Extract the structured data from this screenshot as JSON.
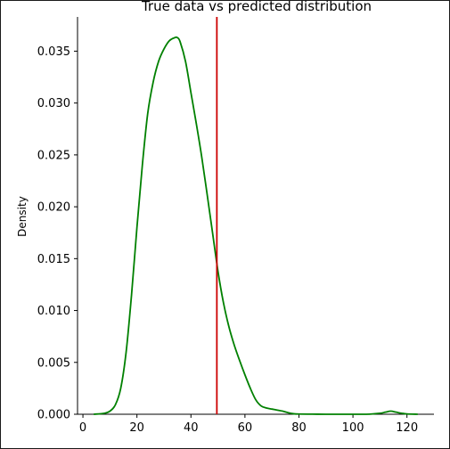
{
  "chart_data": {
    "type": "line",
    "title": "True data vs predicted distribution",
    "xlabel": "",
    "ylabel": "Density",
    "xlim": [
      -2,
      130
    ],
    "ylim": [
      0,
      0.0383
    ],
    "x_ticks": [
      0,
      20,
      40,
      60,
      80,
      100,
      120
    ],
    "y_ticks": [
      "0.000",
      "0.005",
      "0.010",
      "0.015",
      "0.020",
      "0.025",
      "0.030",
      "0.035"
    ],
    "grid": false,
    "legend": "none",
    "series": [
      {
        "color": "#008000",
        "x": [
          4,
          8,
          10,
          12,
          14,
          16,
          18,
          20,
          22,
          24,
          26,
          28,
          30,
          32,
          34,
          35,
          36,
          38,
          40,
          42,
          44,
          46,
          48,
          50,
          52,
          54,
          56,
          58,
          60,
          62,
          64,
          66,
          68,
          70,
          72,
          74,
          76,
          78,
          80,
          85,
          90,
          95,
          100,
          105,
          110,
          112,
          114,
          116,
          118,
          120,
          124
        ],
        "y": [
          0.0,
          0.0001,
          0.0003,
          0.0009,
          0.0025,
          0.006,
          0.0115,
          0.018,
          0.024,
          0.029,
          0.032,
          0.034,
          0.0352,
          0.036,
          0.0363,
          0.0363,
          0.0359,
          0.034,
          0.031,
          0.028,
          0.0248,
          0.0212,
          0.0175,
          0.0138,
          0.0108,
          0.0085,
          0.0067,
          0.0052,
          0.0038,
          0.0025,
          0.0014,
          0.0008,
          0.0006,
          0.0005,
          0.0004,
          0.0003,
          0.00015,
          5e-05,
          2e-05,
          1e-05,
          0.0,
          0.0,
          0.0,
          0.0,
          0.0001,
          0.0002,
          0.0003,
          0.0002,
          0.0001,
          3e-05,
          0.0
        ]
      }
    ],
    "vline": {
      "x": 49.6,
      "color": "#cc0000"
    }
  }
}
